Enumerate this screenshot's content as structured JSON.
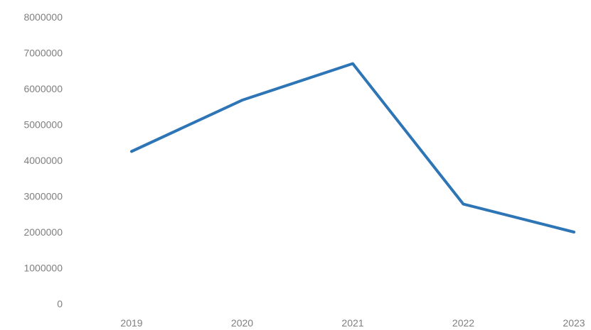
{
  "chart_data": {
    "type": "line",
    "categories": [
      "2019",
      "2020",
      "2021",
      "2022",
      "2023"
    ],
    "series": [
      {
        "values": [
          4250000,
          5680000,
          6700000,
          2780000,
          2000000
        ],
        "color": "#2E75B6"
      }
    ],
    "ylim": [
      0,
      8000000
    ],
    "yticks": [
      "0",
      "1000000",
      "2000000",
      "3000000",
      "4000000",
      "5000000",
      "6000000",
      "7000000",
      "8000000"
    ],
    "grid": false,
    "legend": "none"
  }
}
